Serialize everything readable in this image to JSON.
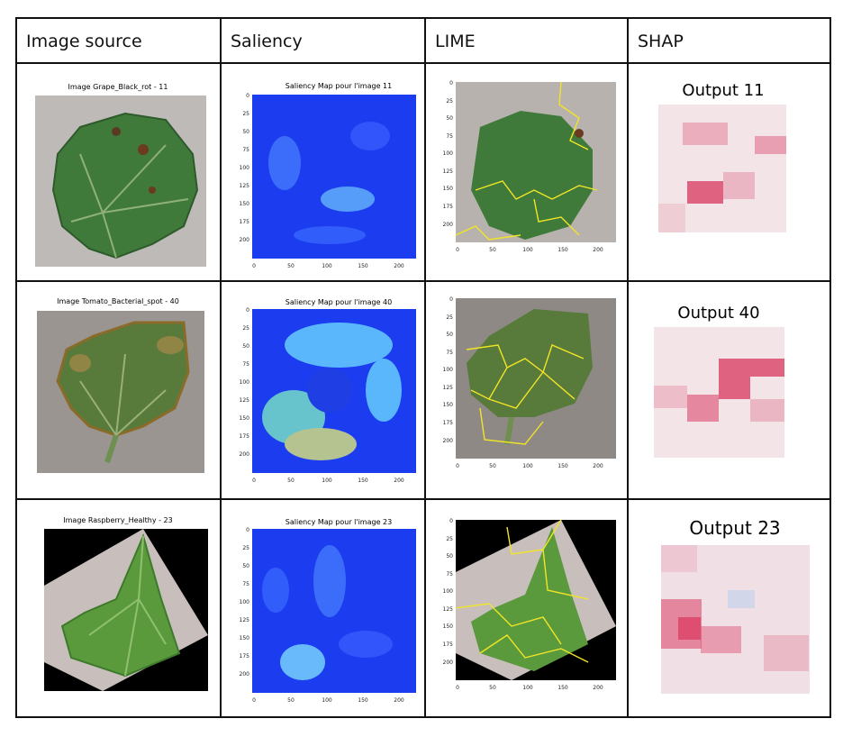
{
  "headers": [
    "Image source",
    "Saliency",
    "LIME",
    "SHAP"
  ],
  "rows": [
    {
      "source_title": "Image Grape_Black_rot - 11",
      "saliency_title": "Saliency Map pour l'image 11",
      "shap_title": "Output 11"
    },
    {
      "source_title": "Image Tomato_Bacterial_spot - 40",
      "saliency_title": "Saliency Map pour l'image 40",
      "shap_title": "Output 40"
    },
    {
      "source_title": "Image Raspberry_Healthy - 23",
      "saliency_title": "Saliency Map pour l'image 23",
      "shap_title": "Output 23"
    }
  ],
  "axis": {
    "y_ticks": [
      "0",
      "25",
      "50",
      "75",
      "100",
      "125",
      "150",
      "175",
      "200"
    ],
    "x_ticks": [
      "0",
      "50",
      "100",
      "150",
      "200"
    ]
  },
  "colors": {
    "saliency_bg": "#1c3cf0",
    "lime_boundary": "#f2e526",
    "shap_pink": "#dc4b6e",
    "leaf_green": "#3f7a3a"
  }
}
